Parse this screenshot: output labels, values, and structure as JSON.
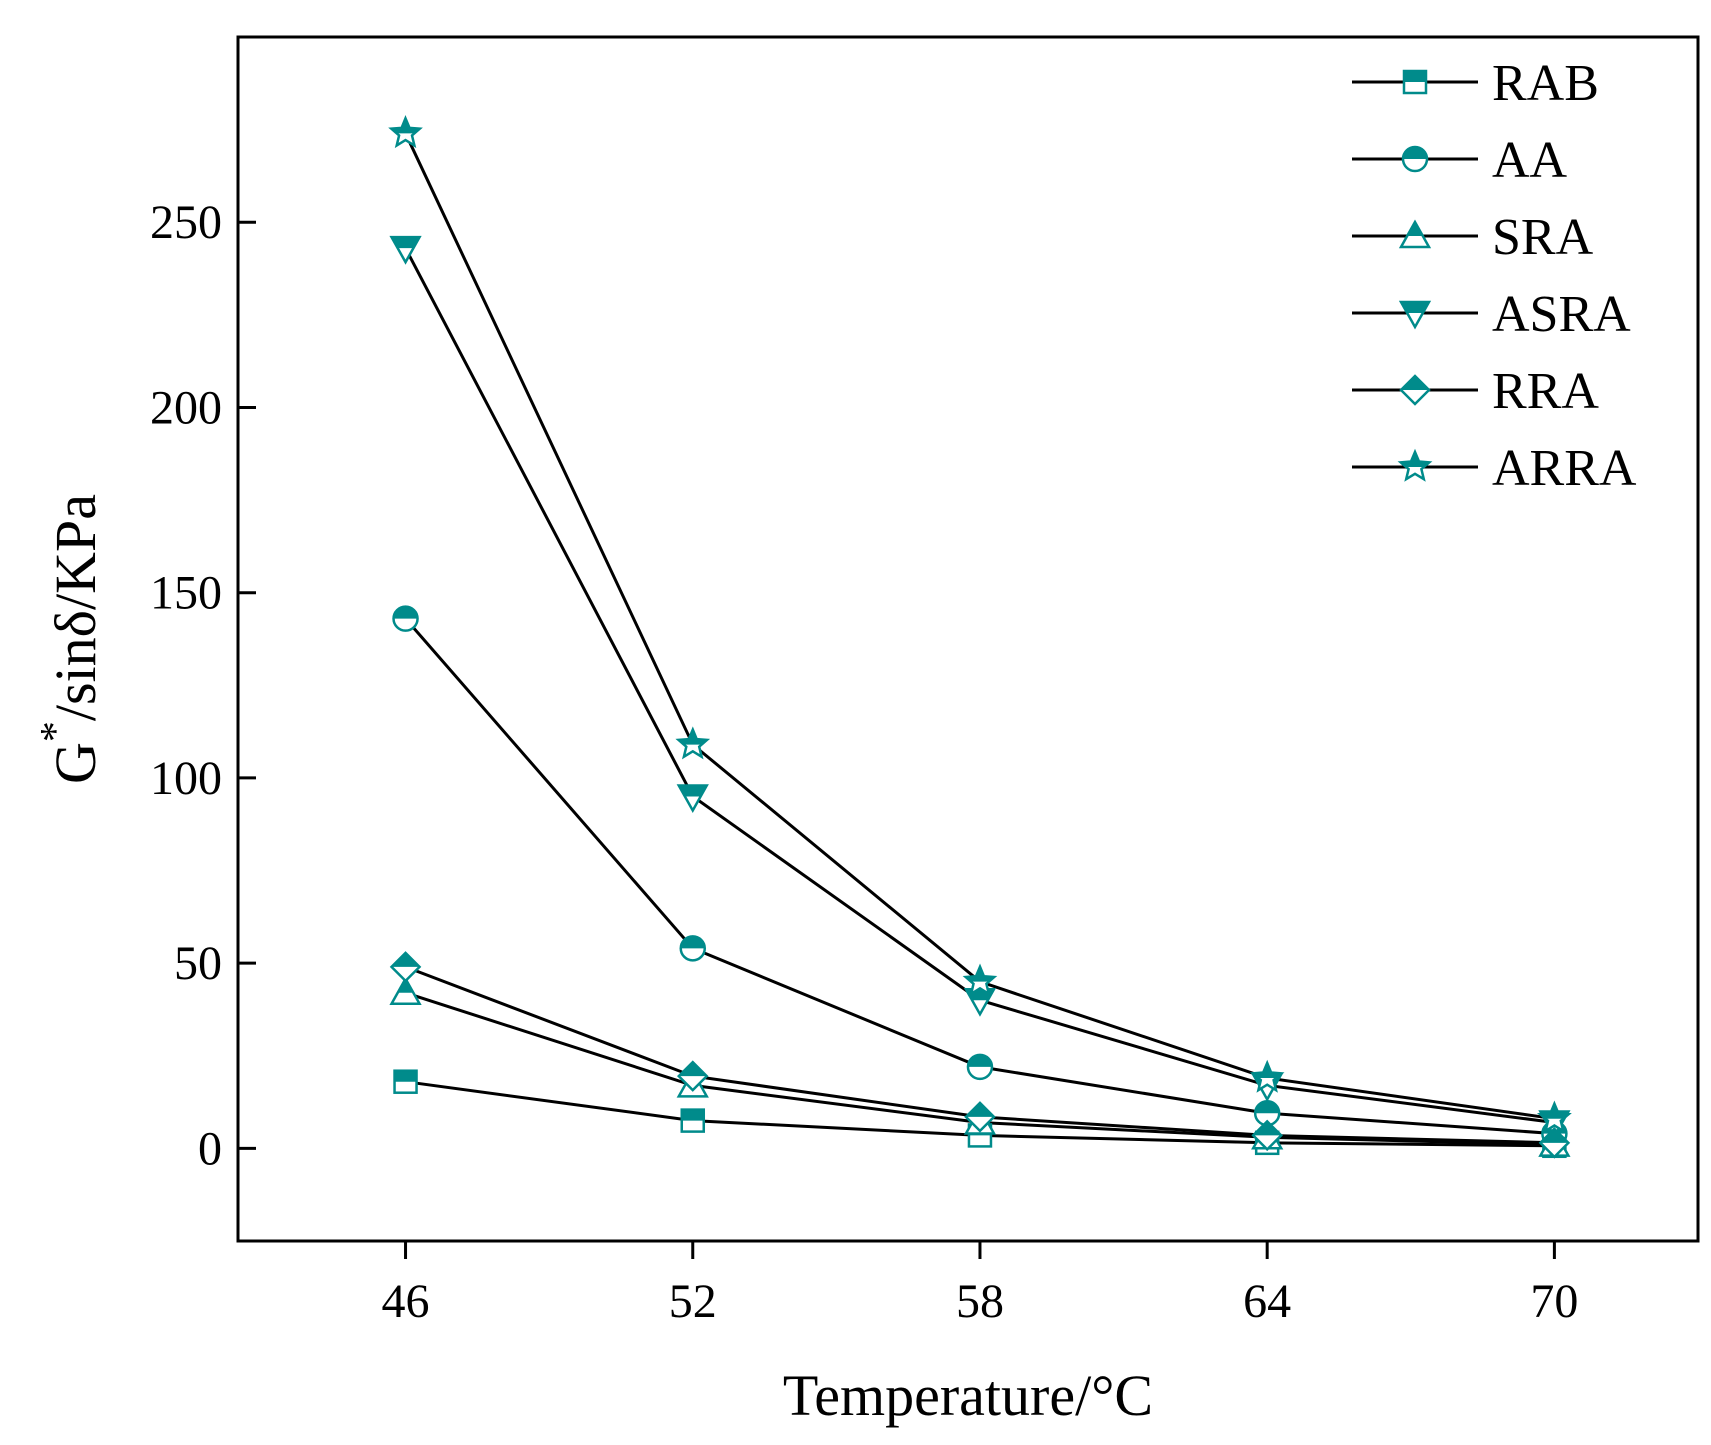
{
  "chart_data": {
    "type": "line",
    "title": "",
    "xlabel": "Temperature/°C",
    "ylabel": {
      "base": "G",
      "sup": "*",
      "rest": "/sinδ/KPa"
    },
    "x": [
      46,
      52,
      58,
      64,
      70
    ],
    "xticks": [
      "46",
      "52",
      "58",
      "64",
      "70"
    ],
    "xlim": [
      42.5,
      73
    ],
    "ylim": [
      -25,
      300
    ],
    "yticks": [
      0,
      50,
      100,
      150,
      200,
      250
    ],
    "grid": false,
    "legend_position": "top-right",
    "marker_color": "#008B8B",
    "line_color": "#000000",
    "series": [
      {
        "name": "RAB",
        "marker": "square",
        "values": [
          18,
          7.5,
          3.5,
          1.5,
          0.7
        ]
      },
      {
        "name": "AA",
        "marker": "circle",
        "values": [
          143,
          54,
          22,
          9.5,
          4
        ]
      },
      {
        "name": "SRA",
        "marker": "triangle-up",
        "values": [
          42,
          17,
          7,
          3,
          1
        ]
      },
      {
        "name": "ASRA",
        "marker": "triangle-down",
        "values": [
          243,
          95,
          40,
          17,
          7
        ]
      },
      {
        "name": "RRA",
        "marker": "diamond",
        "values": [
          49,
          19.5,
          8.5,
          3.5,
          1.5
        ]
      },
      {
        "name": "ARRA",
        "marker": "star",
        "values": [
          274,
          109,
          45,
          19,
          8
        ]
      }
    ]
  }
}
